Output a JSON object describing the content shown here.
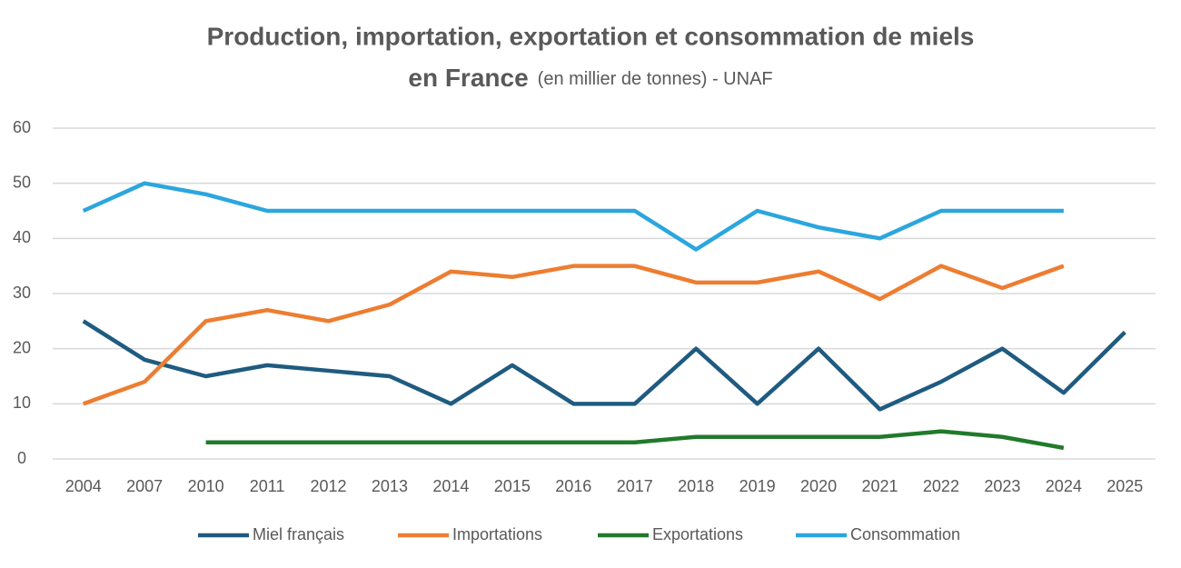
{
  "chart_data": {
    "type": "line",
    "title": [
      "Production, importation, exportation et consommation de miels",
      "en France"
    ],
    "subtitle": "(en millier de tonnes) - UNAF",
    "categories": [
      "2004",
      "2007",
      "2010",
      "2011",
      "2012",
      "2013",
      "2014",
      "2015",
      "2016",
      "2017",
      "2018",
      "2019",
      "2020",
      "2021",
      "2022",
      "2023",
      "2024",
      "2025"
    ],
    "series": [
      {
        "name": "Miel français",
        "color": "#1f5b80",
        "values": [
          25,
          18,
          15,
          17,
          16,
          15,
          10,
          17,
          10,
          10,
          20,
          10,
          20,
          9,
          14,
          20,
          12,
          23
        ]
      },
      {
        "name": "Importations",
        "color": "#ed7d31",
        "values": [
          10,
          14,
          25,
          27,
          25,
          28,
          34,
          33,
          35,
          35,
          32,
          32,
          34,
          29,
          35,
          31,
          35,
          null
        ]
      },
      {
        "name": "Exportations",
        "color": "#217a2b",
        "values": [
          null,
          null,
          3,
          3,
          3,
          3,
          3,
          3,
          3,
          3,
          4,
          4,
          4,
          4,
          5,
          4,
          2,
          null
        ]
      },
      {
        "name": "Consommation",
        "color": "#2ba6de",
        "values": [
          45,
          50,
          48,
          45,
          45,
          45,
          45,
          45,
          45,
          45,
          38,
          45,
          42,
          40,
          45,
          45,
          45,
          null
        ]
      }
    ],
    "ylim": [
      0,
      60
    ],
    "yticks": [
      0,
      10,
      20,
      30,
      40,
      50,
      60
    ],
    "grid": true,
    "legend": "bottom"
  }
}
